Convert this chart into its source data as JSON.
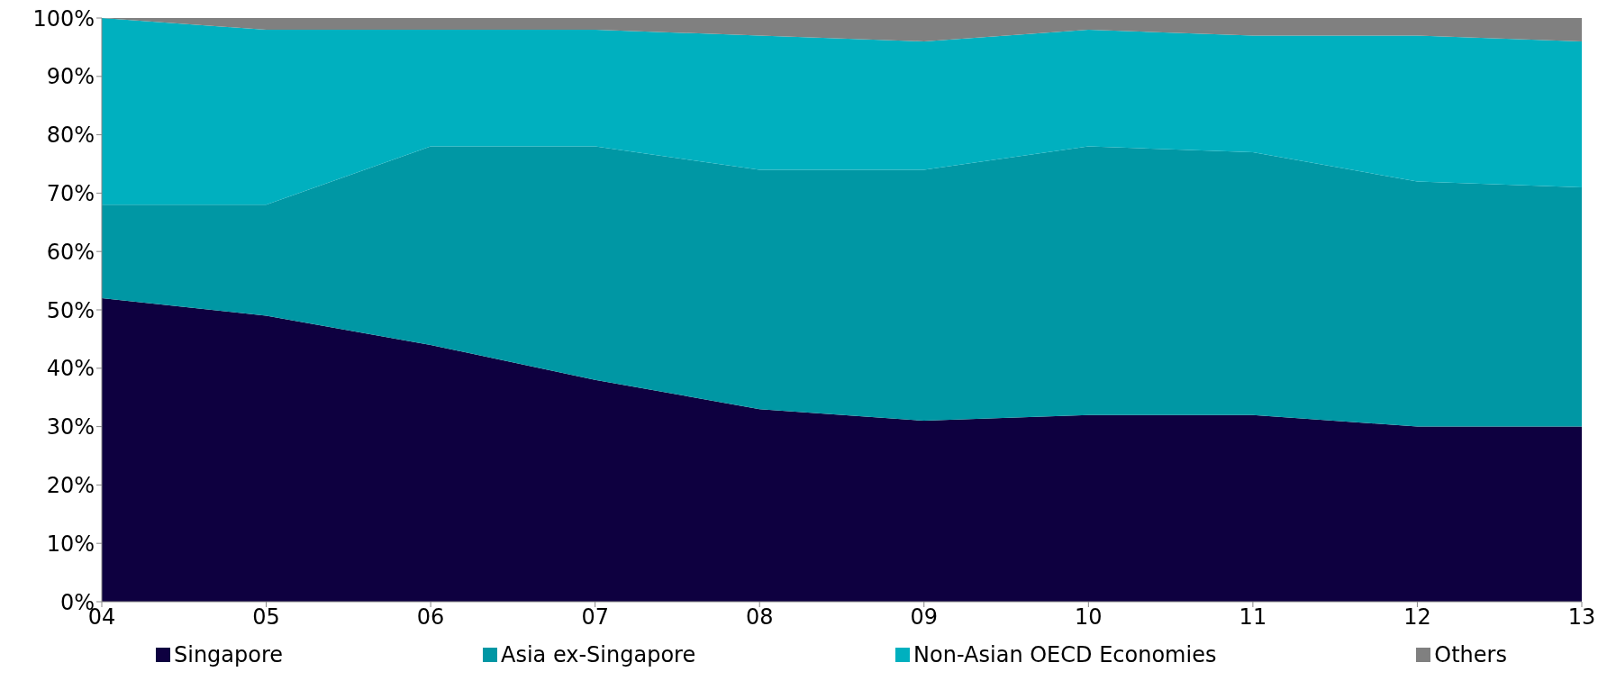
{
  "chart_data": {
    "type": "area",
    "stacked": true,
    "categories": [
      "04",
      "05",
      "06",
      "07",
      "08",
      "09",
      "10",
      "11",
      "12",
      "13"
    ],
    "series": [
      {
        "name": "Singapore",
        "color": "#0e0040",
        "values": [
          52,
          49,
          44,
          38,
          33,
          31,
          32,
          32,
          30,
          30
        ]
      },
      {
        "name": "Asia ex-Singapore",
        "color": "#0097a4",
        "values": [
          16,
          19,
          34,
          40,
          41,
          43,
          46,
          45,
          42,
          41
        ]
      },
      {
        "name": "Non-Asian OECD Economies",
        "color": "#00b0bf",
        "values": [
          32,
          30,
          20,
          20,
          23,
          22,
          20,
          20,
          25,
          25
        ]
      },
      {
        "name": "Others",
        "color": "#808080",
        "values": [
          0,
          2,
          2,
          2,
          3,
          4,
          2,
          3,
          3,
          4
        ]
      }
    ],
    "ylim": [
      0,
      100
    ],
    "yticks": [
      {
        "value": 0,
        "label": "0%"
      },
      {
        "value": 10,
        "label": "10%"
      },
      {
        "value": 20,
        "label": "20%"
      },
      {
        "value": 30,
        "label": "30%"
      },
      {
        "value": 40,
        "label": "40%"
      },
      {
        "value": 50,
        "label": "50%"
      },
      {
        "value": 60,
        "label": "60%"
      },
      {
        "value": 70,
        "label": "70%"
      },
      {
        "value": 80,
        "label": "80%"
      },
      {
        "value": 90,
        "label": "90%"
      },
      {
        "value": 100,
        "label": "100%"
      }
    ],
    "grid": false,
    "legend": "bottom"
  }
}
